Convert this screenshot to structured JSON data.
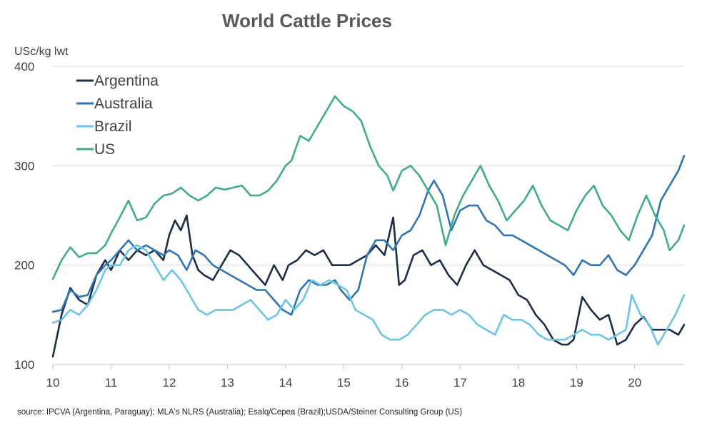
{
  "chart_data": {
    "type": "line",
    "title": "World Cattle Prices",
    "ylabel": "USc/kg lwt",
    "xlabel": "",
    "ylim": [
      100,
      400
    ],
    "xlim": [
      10,
      20.85
    ],
    "yticks": [
      "100",
      "200",
      "300",
      "400"
    ],
    "xticks": [
      "10",
      "11",
      "12",
      "13",
      "14",
      "15",
      "16",
      "17",
      "18",
      "19",
      "20"
    ],
    "grid": "horizontal",
    "legend_position": "top-left",
    "series": [
      {
        "name": "Argentina",
        "color": "#1c2e4a",
        "x": [
          10,
          10.15,
          10.3,
          10.45,
          10.6,
          10.75,
          10.9,
          11.0,
          11.15,
          11.3,
          11.45,
          11.6,
          11.75,
          11.9,
          12.0,
          12.1,
          12.2,
          12.3,
          12.4,
          12.5,
          12.6,
          12.75,
          12.9,
          13.05,
          13.2,
          13.35,
          13.5,
          13.65,
          13.8,
          13.95,
          14.05,
          14.2,
          14.35,
          14.5,
          14.65,
          14.8,
          14.95,
          15.1,
          15.25,
          15.4,
          15.55,
          15.7,
          15.85,
          15.95,
          16.05,
          16.2,
          16.35,
          16.5,
          16.65,
          16.8,
          16.95,
          17.1,
          17.25,
          17.4,
          17.55,
          17.7,
          17.85,
          18.0,
          18.15,
          18.3,
          18.45,
          18.6,
          18.75,
          18.85,
          18.95,
          19.1,
          19.25,
          19.4,
          19.55,
          19.7,
          19.85,
          20.0,
          20.15,
          20.3,
          20.45,
          20.6,
          20.75,
          20.85
        ],
        "values": [
          108,
          150,
          177,
          165,
          160,
          190,
          205,
          195,
          215,
          205,
          215,
          210,
          215,
          205,
          230,
          245,
          235,
          250,
          210,
          195,
          190,
          185,
          200,
          215,
          210,
          200,
          190,
          180,
          200,
          185,
          200,
          205,
          215,
          210,
          215,
          200,
          200,
          200,
          205,
          210,
          220,
          210,
          248,
          180,
          185,
          210,
          215,
          200,
          205,
          190,
          180,
          200,
          215,
          200,
          195,
          190,
          185,
          170,
          165,
          150,
          140,
          125,
          120,
          120,
          125,
          168,
          155,
          145,
          150,
          120,
          125,
          140,
          148,
          135,
          135,
          135,
          130,
          140
        ]
      },
      {
        "name": "Australia",
        "color": "#2e75b6",
        "x": [
          10,
          10.15,
          10.3,
          10.45,
          10.6,
          10.75,
          10.9,
          11.0,
          11.15,
          11.3,
          11.45,
          11.6,
          11.75,
          11.9,
          12.0,
          12.15,
          12.3,
          12.45,
          12.6,
          12.75,
          12.9,
          13.05,
          13.2,
          13.35,
          13.5,
          13.65,
          13.8,
          13.95,
          14.1,
          14.25,
          14.4,
          14.55,
          14.7,
          14.85,
          14.95,
          15.1,
          15.25,
          15.4,
          15.55,
          15.7,
          15.85,
          16.0,
          16.15,
          16.3,
          16.45,
          16.55,
          16.7,
          16.85,
          17.0,
          17.15,
          17.3,
          17.45,
          17.6,
          17.75,
          17.9,
          18.05,
          18.2,
          18.35,
          18.5,
          18.65,
          18.8,
          18.95,
          19.1,
          19.25,
          19.4,
          19.55,
          19.7,
          19.85,
          20.0,
          20.15,
          20.3,
          20.45,
          20.6,
          20.75,
          20.85
        ],
        "values": [
          153,
          155,
          175,
          168,
          170,
          190,
          200,
          205,
          215,
          225,
          215,
          220,
          215,
          210,
          215,
          210,
          195,
          215,
          210,
          200,
          195,
          190,
          185,
          180,
          175,
          175,
          165,
          155,
          150,
          175,
          185,
          180,
          180,
          185,
          175,
          165,
          175,
          210,
          225,
          225,
          215,
          230,
          235,
          250,
          275,
          285,
          270,
          235,
          255,
          260,
          260,
          245,
          240,
          230,
          230,
          225,
          220,
          215,
          210,
          205,
          200,
          190,
          205,
          200,
          200,
          210,
          195,
          190,
          200,
          215,
          230,
          265,
          280,
          295,
          310
        ]
      },
      {
        "name": "Brazil",
        "color": "#6cc4e8",
        "x": [
          10,
          10.15,
          10.3,
          10.45,
          10.6,
          10.75,
          10.9,
          11.0,
          11.15,
          11.3,
          11.45,
          11.6,
          11.75,
          11.9,
          12.05,
          12.2,
          12.35,
          12.5,
          12.65,
          12.8,
          12.95,
          13.1,
          13.25,
          13.4,
          13.55,
          13.7,
          13.85,
          14.0,
          14.15,
          14.3,
          14.45,
          14.6,
          14.75,
          14.9,
          15.05,
          15.2,
          15.35,
          15.5,
          15.65,
          15.8,
          15.95,
          16.1,
          16.25,
          16.4,
          16.55,
          16.7,
          16.85,
          17.0,
          17.15,
          17.3,
          17.45,
          17.6,
          17.75,
          17.9,
          18.05,
          18.2,
          18.35,
          18.5,
          18.65,
          18.8,
          18.95,
          19.1,
          19.25,
          19.4,
          19.55,
          19.7,
          19.85,
          19.95,
          20.1,
          20.25,
          20.4,
          20.55,
          20.7,
          20.85
        ],
        "values": [
          142,
          145,
          155,
          150,
          160,
          175,
          195,
          200,
          200,
          215,
          220,
          215,
          200,
          185,
          195,
          185,
          170,
          155,
          150,
          155,
          155,
          155,
          160,
          165,
          155,
          145,
          150,
          165,
          155,
          165,
          185,
          180,
          185,
          180,
          175,
          155,
          150,
          145,
          130,
          125,
          125,
          130,
          140,
          150,
          155,
          155,
          150,
          155,
          150,
          140,
          135,
          130,
          150,
          145,
          145,
          140,
          130,
          125,
          125,
          125,
          130,
          135,
          130,
          130,
          125,
          130,
          135,
          170,
          150,
          140,
          120,
          135,
          150,
          170
        ]
      },
      {
        "name": "US",
        "color": "#3fae88",
        "x": [
          10,
          10.15,
          10.3,
          10.45,
          10.6,
          10.75,
          10.9,
          11.0,
          11.15,
          11.3,
          11.45,
          11.6,
          11.75,
          11.9,
          12.05,
          12.2,
          12.35,
          12.5,
          12.65,
          12.8,
          12.95,
          13.1,
          13.25,
          13.4,
          13.55,
          13.7,
          13.85,
          14.0,
          14.1,
          14.25,
          14.4,
          14.55,
          14.7,
          14.85,
          15.0,
          15.15,
          15.3,
          15.45,
          15.6,
          15.75,
          15.85,
          16.0,
          16.15,
          16.3,
          16.45,
          16.6,
          16.75,
          16.9,
          17.05,
          17.2,
          17.35,
          17.5,
          17.65,
          17.8,
          17.95,
          18.1,
          18.25,
          18.4,
          18.55,
          18.7,
          18.85,
          19.0,
          19.15,
          19.3,
          19.45,
          19.6,
          19.75,
          19.9,
          20.05,
          20.2,
          20.35,
          20.5,
          20.6,
          20.75,
          20.85
        ],
        "values": [
          186,
          205,
          218,
          208,
          212,
          212,
          220,
          232,
          248,
          265,
          245,
          248,
          262,
          270,
          272,
          278,
          270,
          265,
          270,
          278,
          276,
          278,
          280,
          270,
          270,
          275,
          285,
          300,
          305,
          330,
          325,
          340,
          355,
          370,
          360,
          355,
          345,
          320,
          300,
          290,
          275,
          295,
          300,
          290,
          275,
          260,
          220,
          250,
          270,
          285,
          300,
          280,
          265,
          245,
          255,
          265,
          280,
          260,
          245,
          240,
          235,
          255,
          270,
          280,
          260,
          250,
          235,
          225,
          250,
          270,
          250,
          235,
          215,
          225,
          240
        ]
      }
    ]
  },
  "source_note": "source: IPCVA (Argentina, Paraguay); MLA's NLRS (Australia); Esalq/Cepea (Brazil);USDA/Steiner Consulting Group (US)"
}
